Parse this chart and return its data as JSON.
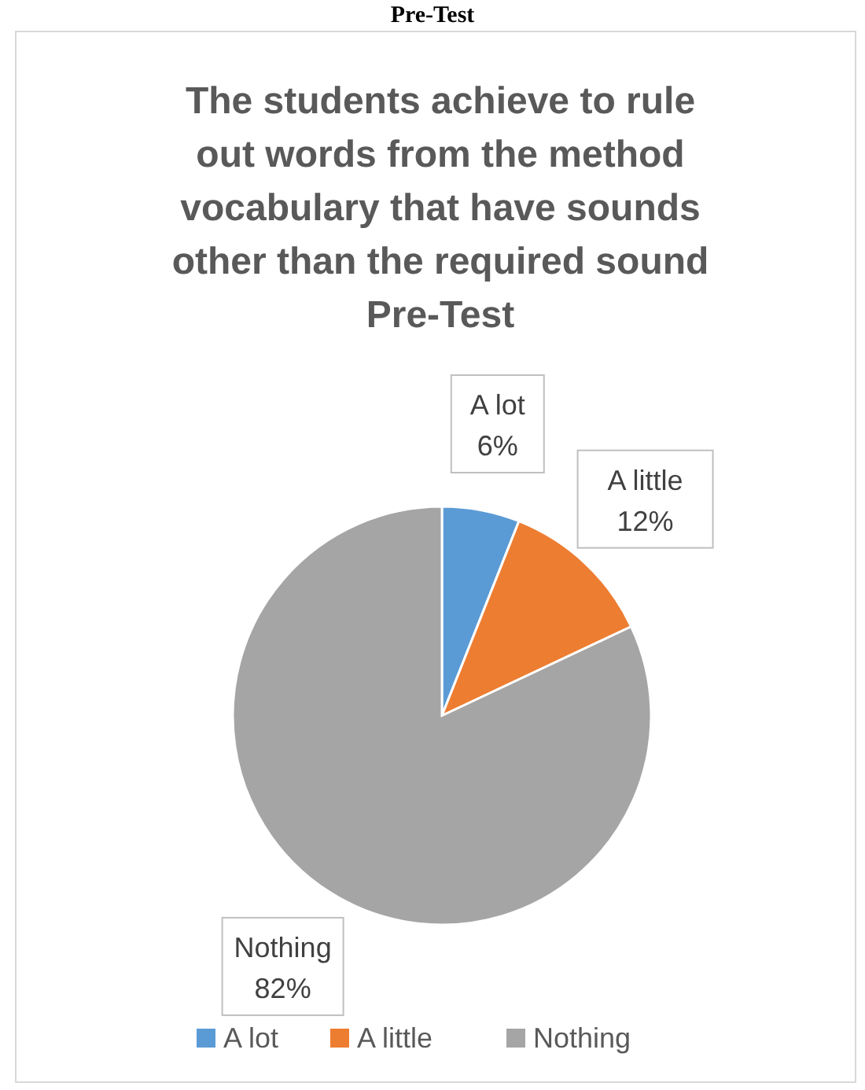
{
  "chart_data": {
    "type": "pie",
    "title": "The students achieve to rule out words from the method vocabulary that have sounds other than the required sound Pre-Test",
    "annotations": [
      "Pre-Test"
    ],
    "categories": [
      "A lot",
      "A little",
      "Nothing"
    ],
    "values": [
      6,
      12,
      82
    ],
    "colors": [
      "#5b9bd5",
      "#ed7d31",
      "#a5a5a5"
    ],
    "value_labels": [
      "6%",
      "12%",
      "82%"
    ],
    "legend": "bottom"
  }
}
